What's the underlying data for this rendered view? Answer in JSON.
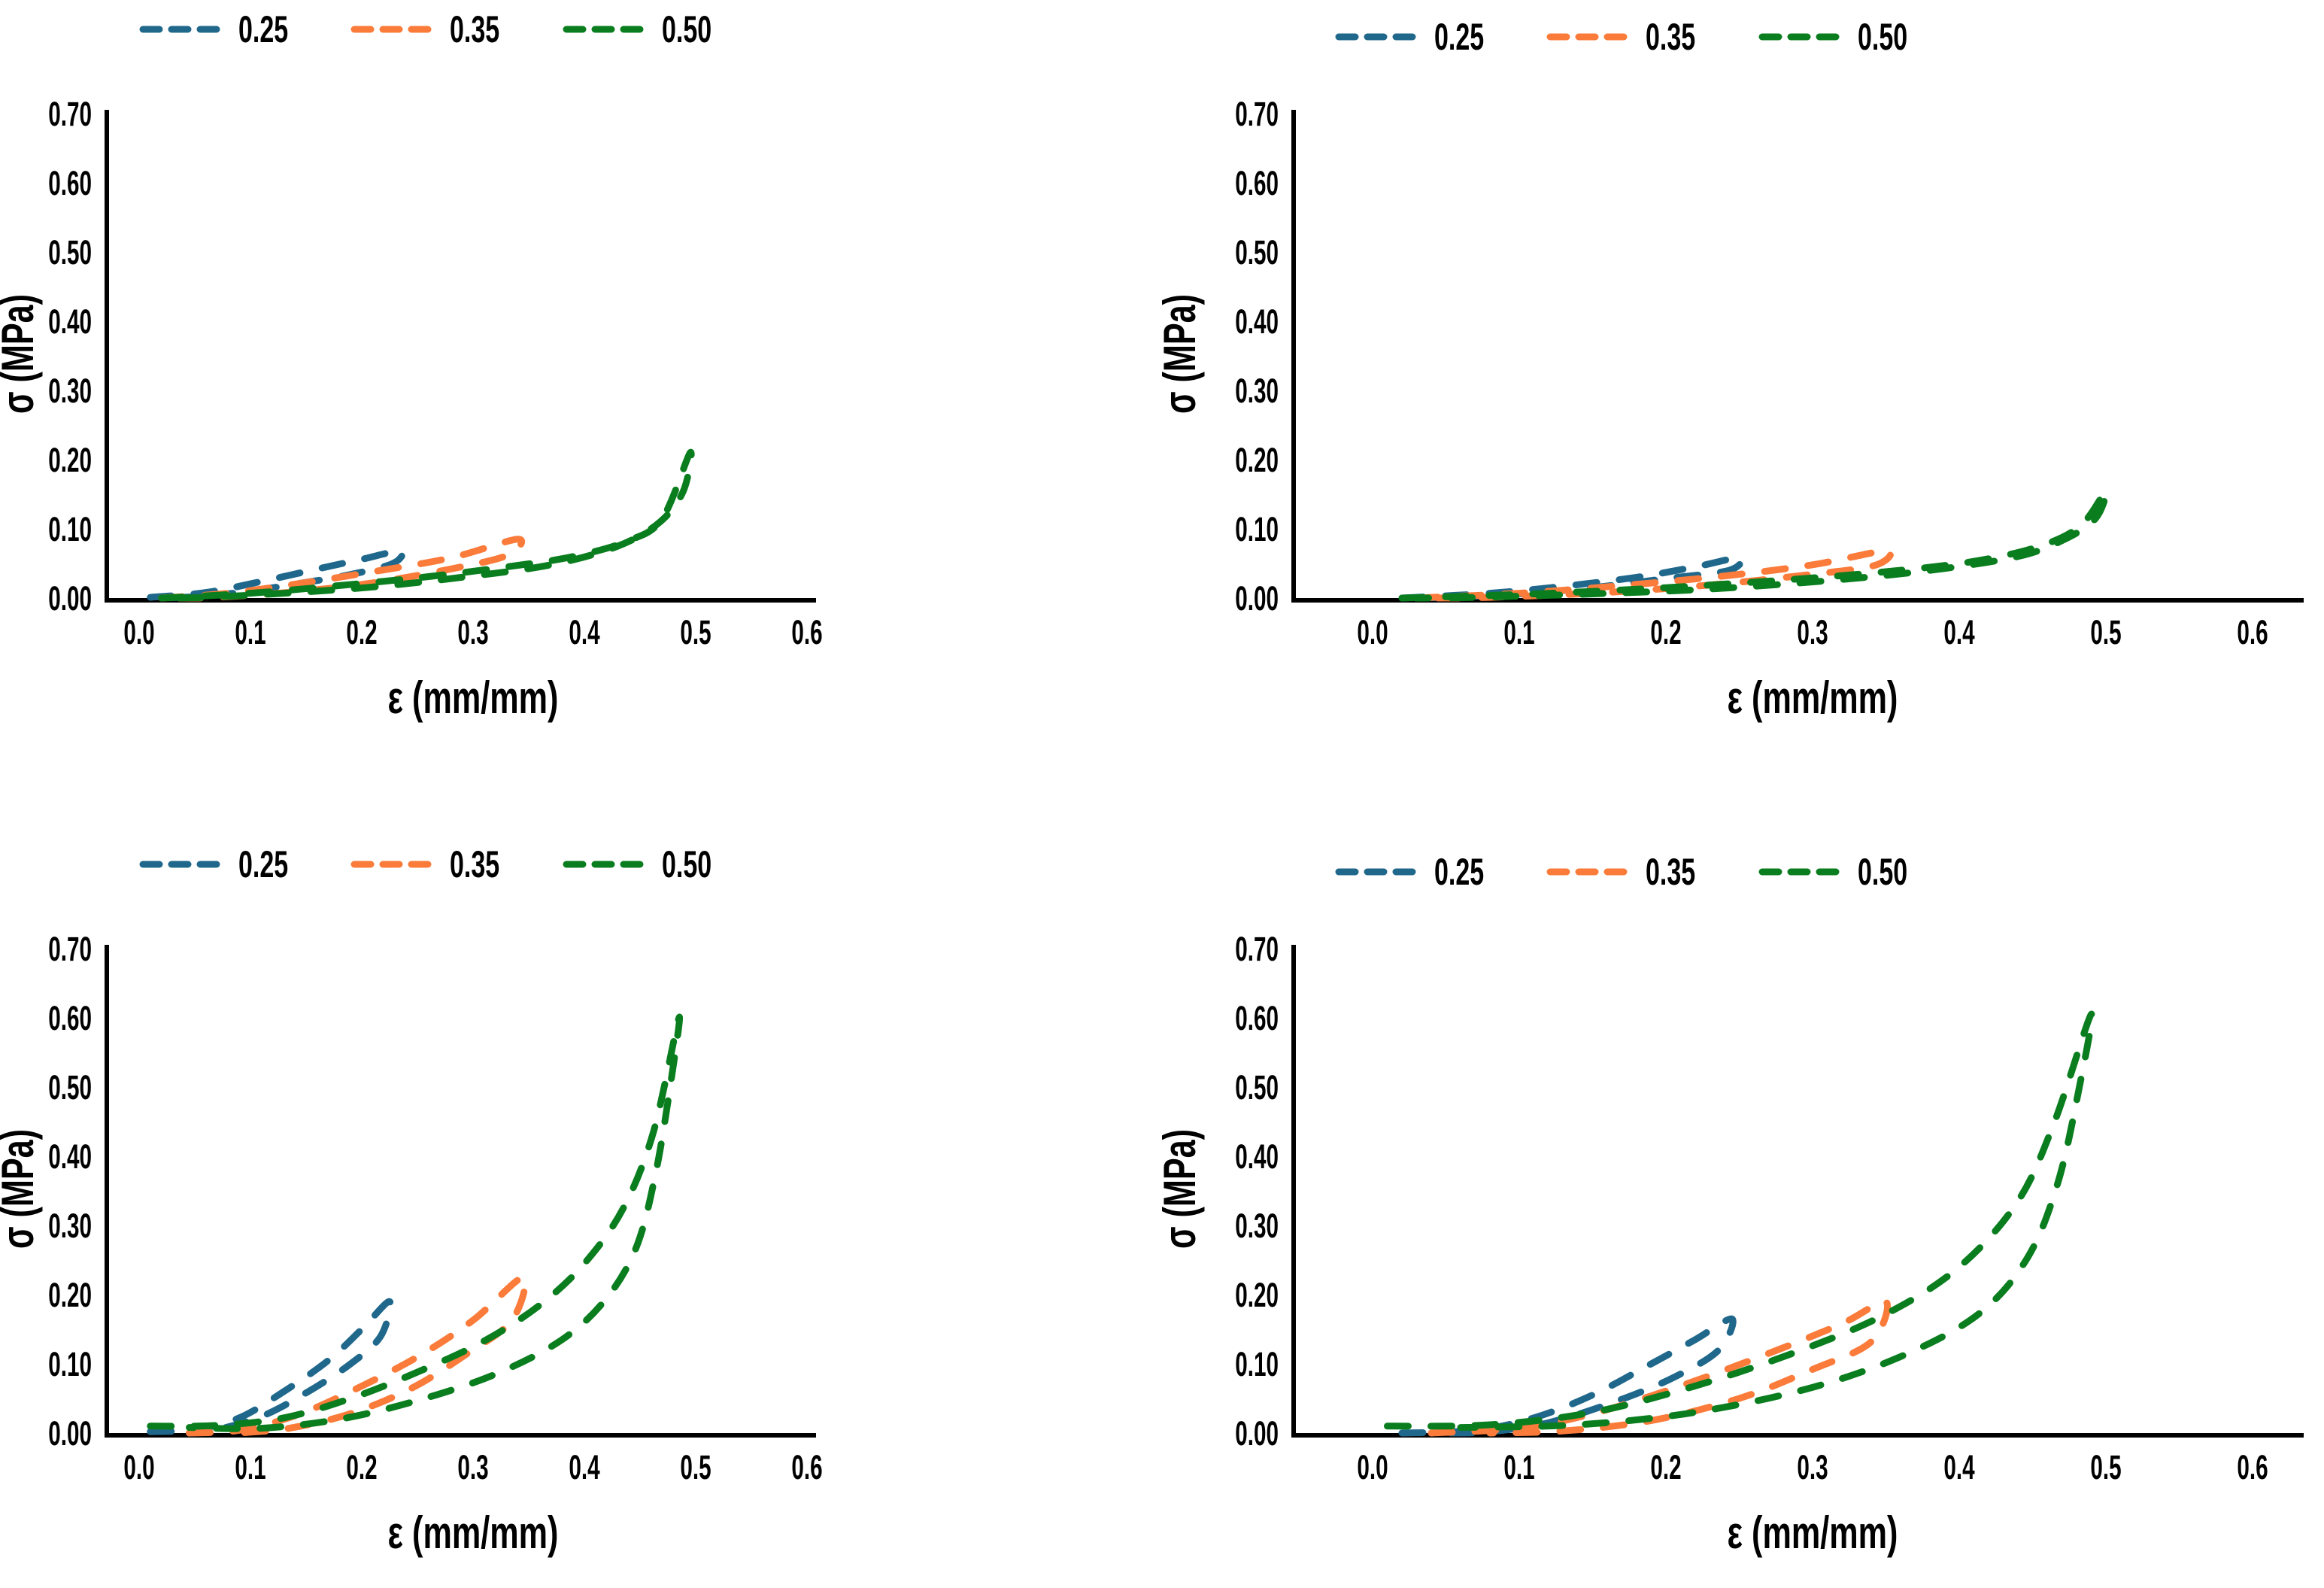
{
  "figure": {
    "background": "#ffffff",
    "axis_color": "#000000",
    "series_colors": {
      "0.25": "#20688B",
      "0.35": "#FA7B3A",
      "0.50": "#0A7D1E"
    }
  },
  "chart_data": [
    {
      "id": "top-left",
      "type": "line",
      "x_label": "ε (mm/mm)",
      "y_label": "σ (MPa)",
      "x_range": [
        0.0,
        0.6
      ],
      "y_range": [
        0.0,
        0.7
      ],
      "x_ticks": [
        "0.0",
        "0.1",
        "0.2",
        "0.3",
        "0.4",
        "0.5",
        "0.6"
      ],
      "y_ticks": [
        "0.00",
        "0.10",
        "0.20",
        "0.30",
        "0.40",
        "0.50",
        "0.60",
        "0.70"
      ],
      "grid": false,
      "legend_position": "top",
      "line_style": "dashed",
      "series": [
        {
          "name": "0.25",
          "color": "#20688B",
          "peak": {
            "strain": 0.235,
            "stress": 0.068
          },
          "points": [
            [
              0.01,
              0.001
            ],
            [
              0.06,
              0.008
            ],
            [
              0.11,
              0.024
            ],
            [
              0.16,
              0.042
            ],
            [
              0.2,
              0.056
            ],
            [
              0.235,
              0.068
            ],
            [
              0.228,
              0.05
            ],
            [
              0.19,
              0.034
            ],
            [
              0.14,
              0.02
            ],
            [
              0.09,
              0.008
            ],
            [
              0.05,
              0.002
            ],
            [
              0.015,
              0.0
            ]
          ]
        },
        {
          "name": "0.35",
          "color": "#FA7B3A",
          "peak": {
            "strain": 0.34,
            "stress": 0.085
          },
          "points": [
            [
              0.02,
              0.0
            ],
            [
              0.08,
              0.007
            ],
            [
              0.14,
              0.02
            ],
            [
              0.21,
              0.038
            ],
            [
              0.28,
              0.058
            ],
            [
              0.34,
              0.085
            ],
            [
              0.331,
              0.062
            ],
            [
              0.28,
              0.042
            ],
            [
              0.21,
              0.022
            ],
            [
              0.14,
              0.009
            ],
            [
              0.07,
              0.001
            ],
            [
              0.03,
              0.0
            ]
          ]
        },
        {
          "name": "0.50",
          "color": "#0A7D1E",
          "peak": {
            "strain": 0.495,
            "stress": 0.21
          },
          "points": [
            [
              0.02,
              0.0
            ],
            [
              0.1,
              0.007
            ],
            [
              0.18,
              0.018
            ],
            [
              0.26,
              0.031
            ],
            [
              0.33,
              0.045
            ],
            [
              0.39,
              0.06
            ],
            [
              0.44,
              0.083
            ],
            [
              0.47,
              0.115
            ],
            [
              0.495,
              0.21
            ],
            [
              0.489,
              0.155
            ],
            [
              0.468,
              0.11
            ],
            [
              0.43,
              0.075
            ],
            [
              0.37,
              0.048
            ],
            [
              0.29,
              0.03
            ],
            [
              0.21,
              0.016
            ],
            [
              0.13,
              0.007
            ],
            [
              0.06,
              0.001
            ],
            [
              0.02,
              0.0
            ]
          ]
        }
      ]
    },
    {
      "id": "top-right",
      "type": "line",
      "x_label": "ε (mm/mm)",
      "y_label": "σ (MPa)",
      "x_range": [
        0.0,
        0.6
      ],
      "y_range": [
        0.0,
        0.7
      ],
      "x_ticks": [
        "0.0",
        "0.1",
        "0.2",
        "0.3",
        "0.4",
        "0.5",
        "0.6"
      ],
      "y_ticks": [
        "0.00",
        "0.10",
        "0.20",
        "0.30",
        "0.40",
        "0.50",
        "0.60",
        "0.70"
      ],
      "grid": false,
      "legend_position": "top",
      "line_style": "dashed",
      "series": [
        {
          "name": "0.25",
          "color": "#20688B",
          "peak": {
            "strain": 0.25,
            "stress": 0.058
          },
          "points": [
            [
              0.02,
              0.0
            ],
            [
              0.08,
              0.007
            ],
            [
              0.13,
              0.017
            ],
            [
              0.18,
              0.03
            ],
            [
              0.22,
              0.045
            ],
            [
              0.25,
              0.058
            ],
            [
              0.243,
              0.04
            ],
            [
              0.2,
              0.028
            ],
            [
              0.15,
              0.015
            ],
            [
              0.1,
              0.006
            ],
            [
              0.05,
              0.001
            ],
            [
              0.02,
              0.0
            ]
          ]
        },
        {
          "name": "0.35",
          "color": "#FA7B3A",
          "peak": {
            "strain": 0.35,
            "stress": 0.068
          },
          "points": [
            [
              0.03,
              0.0
            ],
            [
              0.1,
              0.007
            ],
            [
              0.17,
              0.018
            ],
            [
              0.24,
              0.032
            ],
            [
              0.3,
              0.048
            ],
            [
              0.35,
              0.068
            ],
            [
              0.342,
              0.047
            ],
            [
              0.29,
              0.032
            ],
            [
              0.22,
              0.017
            ],
            [
              0.15,
              0.007
            ],
            [
              0.08,
              0.001
            ],
            [
              0.04,
              0.0
            ]
          ]
        },
        {
          "name": "0.50",
          "color": "#0A7D1E",
          "peak": {
            "strain": 0.5,
            "stress": 0.155
          },
          "points": [
            [
              0.02,
              0.0
            ],
            [
              0.11,
              0.006
            ],
            [
              0.2,
              0.015
            ],
            [
              0.28,
              0.026
            ],
            [
              0.35,
              0.038
            ],
            [
              0.41,
              0.053
            ],
            [
              0.455,
              0.075
            ],
            [
              0.483,
              0.105
            ],
            [
              0.5,
              0.155
            ],
            [
              0.493,
              0.115
            ],
            [
              0.472,
              0.085
            ],
            [
              0.44,
              0.06
            ],
            [
              0.38,
              0.04
            ],
            [
              0.31,
              0.025
            ],
            [
              0.23,
              0.013
            ],
            [
              0.15,
              0.006
            ],
            [
              0.07,
              0.001
            ],
            [
              0.03,
              0.0
            ]
          ]
        }
      ]
    },
    {
      "id": "bottom-left",
      "type": "line",
      "x_label": "ε (mm/mm)",
      "y_label": "σ (MPa)",
      "x_range": [
        0.0,
        0.6
      ],
      "y_range": [
        0.0,
        0.7
      ],
      "x_ticks": [
        "0.0",
        "0.1",
        "0.2",
        "0.3",
        "0.4",
        "0.5",
        "0.6"
      ],
      "y_ticks": [
        "0.00",
        "0.10",
        "0.20",
        "0.30",
        "0.40",
        "0.50",
        "0.60",
        "0.70"
      ],
      "grid": false,
      "legend_position": "top",
      "line_style": "dashed",
      "series": [
        {
          "name": "0.25",
          "color": "#20688B",
          "peak": {
            "strain": 0.225,
            "stress": 0.19
          },
          "points": [
            [
              0.01,
              0.002
            ],
            [
              0.05,
              0.005
            ],
            [
              0.09,
              0.022
            ],
            [
              0.13,
              0.06
            ],
            [
              0.17,
              0.105
            ],
            [
              0.2,
              0.15
            ],
            [
              0.225,
              0.19
            ],
            [
              0.217,
              0.14
            ],
            [
              0.19,
              0.1
            ],
            [
              0.15,
              0.058
            ],
            [
              0.11,
              0.024
            ],
            [
              0.07,
              0.005
            ],
            [
              0.045,
              0.0
            ]
          ]
        },
        {
          "name": "0.35",
          "color": "#FA7B3A",
          "peak": {
            "strain": 0.345,
            "stress": 0.225
          },
          "points": [
            [
              0.045,
              0.0
            ],
            [
              0.09,
              0.004
            ],
            [
              0.14,
              0.025
            ],
            [
              0.19,
              0.06
            ],
            [
              0.25,
              0.11
            ],
            [
              0.3,
              0.163
            ],
            [
              0.345,
              0.225
            ],
            [
              0.335,
              0.163
            ],
            [
              0.295,
              0.115
            ],
            [
              0.245,
              0.065
            ],
            [
              0.19,
              0.028
            ],
            [
              0.135,
              0.007
            ],
            [
              0.09,
              0.0
            ]
          ]
        },
        {
          "name": "0.50",
          "color": "#0A7D1E",
          "peak": {
            "strain": 0.485,
            "stress": 0.6
          },
          "points": [
            [
              0.01,
              0.01
            ],
            [
              0.07,
              0.011
            ],
            [
              0.13,
              0.022
            ],
            [
              0.19,
              0.05
            ],
            [
              0.25,
              0.088
            ],
            [
              0.31,
              0.133
            ],
            [
              0.36,
              0.185
            ],
            [
              0.4,
              0.245
            ],
            [
              0.435,
              0.325
            ],
            [
              0.462,
              0.435
            ],
            [
              0.485,
              0.6
            ],
            [
              0.477,
              0.5
            ],
            [
              0.464,
              0.375
            ],
            [
              0.447,
              0.27
            ],
            [
              0.42,
              0.195
            ],
            [
              0.38,
              0.135
            ],
            [
              0.32,
              0.085
            ],
            [
              0.25,
              0.047
            ],
            [
              0.18,
              0.02
            ],
            [
              0.11,
              0.007
            ],
            [
              0.045,
              0.008
            ]
          ]
        }
      ]
    },
    {
      "id": "bottom-right",
      "type": "line",
      "x_label": "ε (mm/mm)",
      "y_label": "σ (MPa)",
      "x_range": [
        0.0,
        0.6
      ],
      "y_range": [
        0.0,
        0.7
      ],
      "x_ticks": [
        "0.0",
        "0.1",
        "0.2",
        "0.3",
        "0.4",
        "0.5",
        "0.6"
      ],
      "y_ticks": [
        "0.00",
        "0.10",
        "0.20",
        "0.30",
        "0.40",
        "0.50",
        "0.60",
        "0.70"
      ],
      "grid": false,
      "legend_position": "top",
      "line_style": "dashed",
      "series": [
        {
          "name": "0.25",
          "color": "#20688B",
          "peak": {
            "strain": 0.245,
            "stress": 0.165
          },
          "points": [
            [
              0.02,
              0.0
            ],
            [
              0.07,
              0.004
            ],
            [
              0.11,
              0.022
            ],
            [
              0.15,
              0.055
            ],
            [
              0.19,
              0.1
            ],
            [
              0.22,
              0.135
            ],
            [
              0.245,
              0.165
            ],
            [
              0.236,
              0.12
            ],
            [
              0.205,
              0.08
            ],
            [
              0.165,
              0.045
            ],
            [
              0.12,
              0.015
            ],
            [
              0.08,
              0.002
            ],
            [
              0.05,
              0.0
            ]
          ]
        },
        {
          "name": "0.35",
          "color": "#FA7B3A",
          "peak": {
            "strain": 0.35,
            "stress": 0.19
          },
          "points": [
            [
              0.04,
              0.0
            ],
            [
              0.1,
              0.007
            ],
            [
              0.15,
              0.028
            ],
            [
              0.21,
              0.068
            ],
            [
              0.27,
              0.115
            ],
            [
              0.32,
              0.158
            ],
            [
              0.35,
              0.19
            ],
            [
              0.34,
              0.132
            ],
            [
              0.3,
              0.092
            ],
            [
              0.25,
              0.05
            ],
            [
              0.19,
              0.018
            ],
            [
              0.13,
              0.003
            ],
            [
              0.08,
              0.0
            ]
          ]
        },
        {
          "name": "0.50",
          "color": "#0A7D1E",
          "peak": {
            "strain": 0.49,
            "stress": 0.605
          },
          "points": [
            [
              0.01,
              0.01
            ],
            [
              0.08,
              0.012
            ],
            [
              0.15,
              0.03
            ],
            [
              0.22,
              0.068
            ],
            [
              0.29,
              0.118
            ],
            [
              0.35,
              0.172
            ],
            [
              0.4,
              0.24
            ],
            [
              0.44,
              0.335
            ],
            [
              0.465,
              0.45
            ],
            [
              0.49,
              0.605
            ],
            [
              0.481,
              0.49
            ],
            [
              0.467,
              0.36
            ],
            [
              0.447,
              0.255
            ],
            [
              0.415,
              0.175
            ],
            [
              0.365,
              0.115
            ],
            [
              0.3,
              0.066
            ],
            [
              0.22,
              0.03
            ],
            [
              0.14,
              0.012
            ],
            [
              0.06,
              0.008
            ]
          ]
        }
      ]
    }
  ]
}
